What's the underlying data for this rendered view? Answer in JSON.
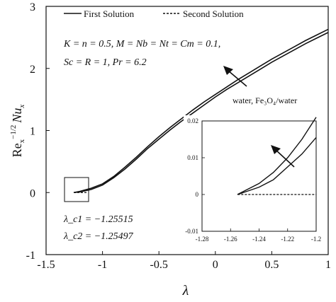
{
  "chart_data": {
    "type": "line",
    "xlim": [
      -1.5,
      1.0
    ],
    "ylim": [
      -1,
      3
    ],
    "xticks": [
      "-1.5",
      "-1",
      "-0.5",
      "0",
      "0.5",
      "1"
    ],
    "yticks": [
      "-1",
      "0",
      "1",
      "2",
      "3"
    ],
    "xlabel": "λ",
    "ylabel": "Re_x^{-1/2} Nu_x",
    "grid": false,
    "legend": {
      "placement": "top-left",
      "entries": [
        "First Solution",
        "Second Solution"
      ]
    },
    "series": [
      {
        "name": "First Solution (water)",
        "style": "solid",
        "x": [
          -1.255,
          -1.2,
          -1.1,
          -1.0,
          -0.9,
          -0.8,
          -0.7,
          -0.6,
          -0.5,
          -0.4,
          -0.3,
          -0.2,
          -0.1,
          0.0,
          0.1,
          0.2,
          0.3,
          0.4,
          0.5,
          0.6,
          0.7,
          0.8,
          0.9,
          1.0
        ],
        "y": [
          0.0,
          0.01,
          0.05,
          0.12,
          0.24,
          0.38,
          0.54,
          0.71,
          0.86,
          1.01,
          1.15,
          1.28,
          1.41,
          1.54,
          1.66,
          1.77,
          1.88,
          1.99,
          2.1,
          2.2,
          2.3,
          2.4,
          2.49,
          2.58
        ]
      },
      {
        "name": "First Solution (Fe3O4/water)",
        "style": "solid",
        "x": [
          -1.255,
          -1.2,
          -1.1,
          -1.0,
          -0.9,
          -0.8,
          -0.7,
          -0.6,
          -0.5,
          -0.4,
          -0.3,
          -0.2,
          -0.1,
          0.0,
          0.1,
          0.2,
          0.3,
          0.4,
          0.5,
          0.6,
          0.7,
          0.8,
          0.9,
          1.0
        ],
        "y": [
          0.0,
          0.02,
          0.07,
          0.14,
          0.26,
          0.41,
          0.57,
          0.74,
          0.9,
          1.05,
          1.19,
          1.33,
          1.46,
          1.58,
          1.7,
          1.82,
          1.93,
          2.04,
          2.15,
          2.25,
          2.35,
          2.45,
          2.54,
          2.63
        ]
      },
      {
        "name": "Second Solution",
        "style": "dashed",
        "x": [
          -1.255,
          -1.22,
          -1.18,
          -1.14
        ],
        "y": [
          0.0,
          0.0,
          0.0,
          0.0
        ]
      }
    ],
    "inset": {
      "xlim": [
        -1.28,
        -1.2
      ],
      "ylim": [
        -0.01,
        0.02
      ],
      "xticks": [
        "-1.28",
        "-1.26",
        "-1.24",
        "-1.22",
        "-1.2"
      ],
      "yticks": [
        "-0.01",
        "0",
        "0.01",
        "0.02"
      ],
      "series": [
        {
          "style": "solid",
          "x": [
            -1.2552,
            -1.24,
            -1.23,
            -1.22,
            -1.21,
            -1.2
          ],
          "y": [
            0.0,
            0.003,
            0.006,
            0.01,
            0.015,
            0.021
          ]
        },
        {
          "style": "solid",
          "x": [
            -1.255,
            -1.24,
            -1.23,
            -1.22,
            -1.21,
            -1.2
          ],
          "y": [
            0.0,
            0.002,
            0.004,
            0.0075,
            0.011,
            0.0155
          ]
        },
        {
          "style": "dashed",
          "x": [
            -1.255,
            -1.24,
            -1.22,
            -1.2
          ],
          "y": [
            0.0,
            0.0,
            0.0,
            0.0
          ]
        }
      ]
    },
    "annotations": {
      "params_line1": "K = n = 0.5, M = Nb = Nt = Cm = 0.1,",
      "params_line2": "Sc = R = 1, Pr = 6.2",
      "arrow_label": "water, Fe₃O₄/water",
      "lambda_c1": "λ_c1 = −1.25515",
      "lambda_c2": "λ_c2 = −1.25497"
    }
  }
}
